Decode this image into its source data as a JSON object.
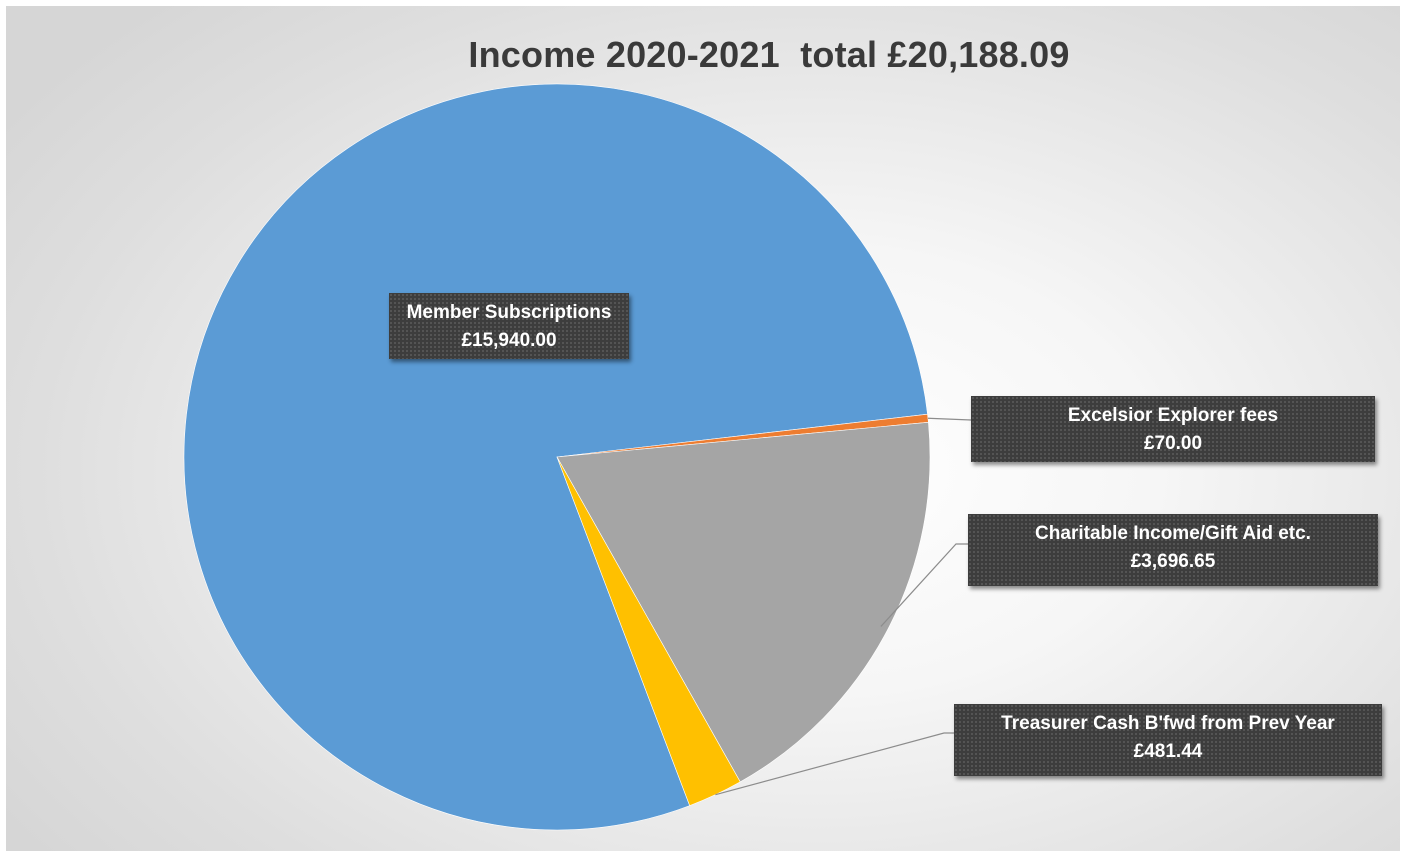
{
  "chart_data": {
    "type": "pie",
    "title": "Income 2020-2021  total £20,188.09",
    "slices": [
      {
        "category": "Member Subscriptions",
        "value": 15940.0,
        "value_label": "£15,940.00",
        "color": "#5b9bd5"
      },
      {
        "category": "Excelsior Explorer fees",
        "value": 70.0,
        "value_label": "£70.00",
        "color": "#ed7d31"
      },
      {
        "category": "Charitable Income/Gift Aid etc.",
        "value": 3696.65,
        "value_label": "£3,696.65",
        "color": "#a5a5a5"
      },
      {
        "category": "Treasurer Cash B'fwd from Prev Year",
        "value": 481.44,
        "value_label": "£481.44",
        "color": "#ffc000"
      }
    ],
    "legend": "none",
    "data_labels": "callouts with category name and value"
  }
}
